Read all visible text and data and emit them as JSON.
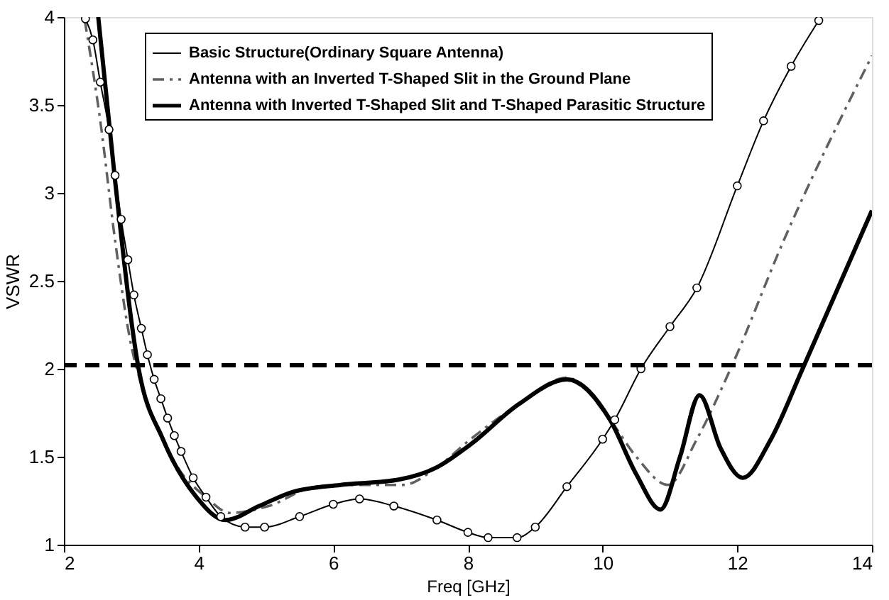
{
  "chart_data": {
    "type": "line",
    "xlabel": "Freq [GHz]",
    "ylabel": "VSWR",
    "xlim": [
      2,
      14
    ],
    "ylim": [
      1,
      4
    ],
    "xticks": [
      2,
      4,
      6,
      8,
      10,
      12,
      14
    ],
    "yticks": [
      1,
      1.5,
      2,
      2.5,
      3,
      3.5,
      4
    ],
    "grid": false,
    "legend": "top right",
    "series": [
      {
        "name": "Basic Structure(Ordinary Square Antenna)",
        "color": "#000000",
        "marker": "circle",
        "line_style": "solid",
        "x": [
          2.32,
          2.43,
          2.54,
          2.67,
          2.76,
          2.85,
          2.95,
          3.04,
          3.15,
          3.24,
          3.34,
          3.44,
          3.54,
          3.64,
          3.74,
          3.92,
          4.11,
          4.33,
          4.69,
          4.98,
          5.5,
          6.0,
          6.39,
          6.9,
          7.54,
          8.0,
          8.3,
          8.73,
          9.0,
          9.47,
          10.0,
          10.18,
          10.57,
          11.0,
          11.4,
          12.0,
          12.39,
          12.8,
          13.21
        ],
        "values": [
          3.99,
          3.87,
          3.63,
          3.36,
          3.1,
          2.85,
          2.62,
          2.42,
          2.23,
          2.08,
          1.94,
          1.83,
          1.72,
          1.62,
          1.53,
          1.38,
          1.27,
          1.16,
          1.1,
          1.1,
          1.16,
          1.23,
          1.26,
          1.22,
          1.14,
          1.07,
          1.04,
          1.04,
          1.1,
          1.33,
          1.6,
          1.71,
          2.0,
          2.24,
          2.46,
          3.04,
          3.41,
          3.72,
          3.98
        ]
      },
      {
        "name": "Antenna with an Inverted T-Shaped Slit in the Ground Plane",
        "color": "#606060",
        "marker": "none",
        "line_style": "dashdot",
        "x": [
          2.31,
          2.54,
          2.76,
          2.97,
          3.26,
          3.69,
          4.11,
          4.47,
          5.04,
          5.75,
          6.47,
          7.04,
          7.54,
          8.04,
          8.76,
          9.47,
          10.11,
          10.5,
          10.97,
          11.4,
          11.9,
          12.69,
          14.0
        ],
        "values": [
          3.98,
          3.41,
          2.73,
          2.19,
          1.79,
          1.44,
          1.27,
          1.18,
          1.22,
          1.33,
          1.34,
          1.34,
          1.44,
          1.6,
          1.8,
          1.95,
          1.71,
          1.5,
          1.34,
          1.6,
          2.0,
          2.73,
          3.78
        ]
      },
      {
        "name": "Antenna with Inverted T-Shaped Slit and T-Shaped Parasitic Structure",
        "color": "#000000",
        "marker": "none",
        "line_style": "solid",
        "x": [
          2.51,
          2.76,
          3.11,
          3.47,
          3.97,
          4.4,
          4.9,
          5.4,
          6.11,
          6.97,
          7.54,
          8.04,
          8.76,
          9.47,
          10.11,
          10.5,
          10.86,
          11.15,
          11.44,
          11.75,
          12.08,
          12.5,
          12.97,
          14.0
        ],
        "values": [
          4.0,
          3.07,
          2.0,
          1.6,
          1.27,
          1.14,
          1.22,
          1.3,
          1.34,
          1.37,
          1.44,
          1.57,
          1.8,
          1.94,
          1.71,
          1.4,
          1.2,
          1.5,
          1.85,
          1.55,
          1.38,
          1.6,
          2.0,
          2.9
        ]
      }
    ],
    "ref_lines": [
      {
        "axis": "y",
        "value": 2.02,
        "color": "#000000",
        "line_style": "dashed"
      }
    ]
  }
}
